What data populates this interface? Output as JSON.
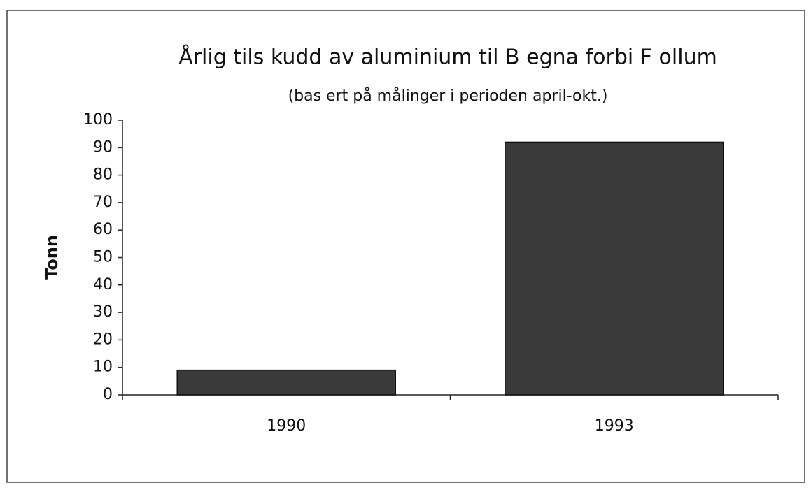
{
  "chart_data": {
    "type": "bar",
    "title": "Årlig tils kudd av aluminium til B egna forbi F ollum",
    "subtitle": "(bas ert på målinger i perioden april-okt.)",
    "y_label": "Tonn",
    "categories": [
      "1990",
      "1993"
    ],
    "values": [
      9,
      92
    ],
    "color": "#3a3a3a",
    "ylim": [
      0,
      100
    ],
    "yticks": [
      0,
      10,
      20,
      30,
      40,
      50,
      60,
      70,
      80,
      90,
      100
    ],
    "grid": false
  }
}
